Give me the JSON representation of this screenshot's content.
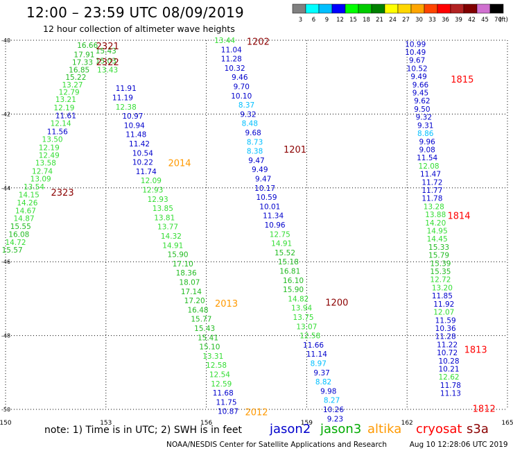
{
  "header": {
    "title": "12:00 – 23:59 UTC 08/09/2019",
    "subtitle": "12 hour collection of altimeter wave heights"
  },
  "note": "note:  1) Time is in UTC; 2) SWH is in feet",
  "footer": {
    "credit": "NOAA/NESDIS Center for Satellite Applications and Research",
    "generated": "Aug 10 12:28:06 UTC 2019"
  },
  "satellites": [
    {
      "name": "jason2",
      "color": "#0000cc"
    },
    {
      "name": "jason3",
      "color": "#00aa00"
    },
    {
      "name": "altika",
      "color": "#ff9900"
    },
    {
      "name": "cryosat",
      "color": "#ff0000"
    },
    {
      "name": "s3a",
      "color": "#8b0000"
    }
  ],
  "legend": {
    "unit": "(ft)",
    "bins": [
      {
        "label": "3",
        "color": "#808080"
      },
      {
        "label": "6",
        "color": "#00ffff"
      },
      {
        "label": "9",
        "color": "#00bfff"
      },
      {
        "label": "12",
        "color": "#0000ff"
      },
      {
        "label": "15",
        "color": "#00ff00"
      },
      {
        "label": "18",
        "color": "#00cc00"
      },
      {
        "label": "21",
        "color": "#008000"
      },
      {
        "label": "24",
        "color": "#ffff00"
      },
      {
        "label": "27",
        "color": "#ffd700"
      },
      {
        "label": "30",
        "color": "#ffa500"
      },
      {
        "label": "33",
        "color": "#ff4500"
      },
      {
        "label": "36",
        "color": "#ff0000"
      },
      {
        "label": "39",
        "color": "#b22222"
      },
      {
        "label": "42",
        "color": "#800000"
      },
      {
        "label": "45",
        "color": "#d070d0"
      },
      {
        "label": "70",
        "color": "#000000"
      }
    ]
  },
  "chart_data": {
    "type": "scatter",
    "title": "12:00 – 23:59 UTC 08/09/2019",
    "subtitle": "12 hour collection of altimeter wave heights",
    "xlim": [
      150,
      165
    ],
    "ylim": [
      -50,
      -40
    ],
    "xticks": [
      150,
      153,
      156,
      159,
      162,
      165
    ],
    "yticks": [
      -40,
      -42,
      -44,
      -46,
      -48,
      -50
    ],
    "grid": true,
    "colors": {
      "c9": "#00bfff",
      "c12": "#0000cc",
      "c15": "#33dd33",
      "c18": "#22bb22",
      "t_s3a": "#8b0000",
      "t_alt": "#ff9900",
      "t_cryo": "#ff0000"
    },
    "tracks": [
      {
        "name": "track-s3a-2321-2323",
        "points": [
          [
            152.45,
            -40.13,
            16.66
          ],
          [
            152.35,
            -40.39,
            17.91
          ],
          [
            152.3,
            -40.59,
            17.33
          ],
          [
            152.2,
            -40.8,
            16.85
          ],
          [
            152.1,
            -41.0,
            15.22
          ],
          [
            152.0,
            -41.2,
            13.27
          ],
          [
            151.9,
            -41.4,
            12.79
          ],
          [
            151.8,
            -41.6,
            13.21
          ],
          [
            151.75,
            -41.82,
            12.19
          ],
          [
            151.8,
            -42.04,
            11.61
          ],
          [
            151.65,
            -42.25,
            12.14
          ],
          [
            151.55,
            -42.47,
            11.56
          ],
          [
            151.4,
            -42.68,
            13.5
          ],
          [
            151.3,
            -42.9,
            12.19
          ],
          [
            151.3,
            -43.11,
            12.49
          ],
          [
            151.2,
            -43.32,
            13.58
          ],
          [
            151.1,
            -43.54,
            12.74
          ],
          [
            151.05,
            -43.75,
            13.09
          ],
          [
            150.85,
            -43.97,
            13.54
          ],
          [
            150.7,
            -44.18,
            14.15
          ],
          [
            150.65,
            -44.4,
            14.26
          ],
          [
            150.6,
            -44.61,
            14.67
          ],
          [
            150.55,
            -44.82,
            14.87
          ],
          [
            150.45,
            -45.04,
            15.55
          ],
          [
            150.4,
            -45.25,
            16.08
          ],
          [
            150.3,
            -45.47,
            14.72
          ],
          [
            150.2,
            -45.68,
            15.57
          ]
        ]
      },
      {
        "name": "track-s3a-2321-2322-upper",
        "points": [
          [
            153.0,
            -40.28,
            15.43
          ],
          [
            153.0,
            -40.55,
            15.03
          ],
          [
            153.05,
            -40.8,
            13.43
          ]
        ]
      },
      {
        "name": "track-altika-2012-2014",
        "points": [
          [
            153.6,
            -41.3,
            11.91
          ],
          [
            153.5,
            -41.55,
            11.19
          ],
          [
            153.6,
            -41.8,
            12.38
          ],
          [
            153.8,
            -42.05,
            10.97
          ],
          [
            153.85,
            -42.3,
            10.94
          ],
          [
            153.9,
            -42.55,
            11.48
          ],
          [
            154.0,
            -42.8,
            11.42
          ],
          [
            154.1,
            -43.05,
            10.54
          ],
          [
            154.1,
            -43.3,
            10.22
          ],
          [
            154.2,
            -43.55,
            11.74
          ],
          [
            154.35,
            -43.8,
            12.09
          ],
          [
            154.4,
            -44.05,
            12.93
          ],
          [
            154.55,
            -44.3,
            12.93
          ],
          [
            154.7,
            -44.55,
            13.85
          ],
          [
            154.75,
            -44.8,
            13.81
          ],
          [
            154.85,
            -45.05,
            13.77
          ],
          [
            154.95,
            -45.3,
            14.32
          ],
          [
            155.0,
            -45.55,
            14.91
          ],
          [
            155.15,
            -45.8,
            15.9
          ],
          [
            155.3,
            -46.05,
            17.1
          ],
          [
            155.4,
            -46.3,
            18.36
          ],
          [
            155.5,
            -46.55,
            18.07
          ],
          [
            155.55,
            -46.8,
            17.14
          ],
          [
            155.65,
            -47.05,
            17.2
          ],
          [
            155.75,
            -47.3,
            16.48
          ],
          [
            155.85,
            -47.55,
            15.77
          ],
          [
            155.95,
            -47.8,
            15.43
          ],
          [
            156.05,
            -48.05,
            15.41
          ],
          [
            156.1,
            -48.3,
            15.1
          ],
          [
            156.2,
            -48.55,
            13.31
          ],
          [
            156.3,
            -48.8,
            12.58
          ],
          [
            156.4,
            -49.05,
            12.54
          ],
          [
            156.45,
            -49.3,
            12.59
          ],
          [
            156.5,
            -49.55,
            11.68
          ],
          [
            156.6,
            -49.8,
            11.75
          ],
          [
            156.65,
            -50.05,
            10.87
          ]
        ]
      },
      {
        "name": "track-s3a-1200-1202",
        "points": [
          [
            156.55,
            -40.0,
            13.44
          ],
          [
            156.75,
            -40.25,
            11.04
          ],
          [
            156.75,
            -40.5,
            11.28
          ],
          [
            156.85,
            -40.75,
            10.32
          ],
          [
            157.0,
            -41.0,
            9.46
          ],
          [
            157.05,
            -41.25,
            9.7
          ],
          [
            157.05,
            -41.5,
            10.1
          ],
          [
            157.2,
            -41.75,
            8.37
          ],
          [
            157.25,
            -42.0,
            9.32
          ],
          [
            157.3,
            -42.25,
            8.48
          ],
          [
            157.4,
            -42.5,
            9.68
          ],
          [
            157.45,
            -42.75,
            8.73
          ],
          [
            157.45,
            -43.0,
            8.38
          ],
          [
            157.5,
            -43.25,
            9.47
          ],
          [
            157.6,
            -43.5,
            9.49
          ],
          [
            157.7,
            -43.75,
            9.47
          ],
          [
            157.75,
            -44.0,
            10.17
          ],
          [
            157.8,
            -44.25,
            10.59
          ],
          [
            157.9,
            -44.5,
            10.01
          ],
          [
            158.0,
            -44.75,
            11.34
          ],
          [
            158.05,
            -45.0,
            10.96
          ],
          [
            158.2,
            -45.25,
            12.75
          ],
          [
            158.25,
            -45.5,
            14.91
          ],
          [
            158.35,
            -45.75,
            15.52
          ],
          [
            158.45,
            -46.0,
            15.18
          ],
          [
            158.5,
            -46.25,
            16.81
          ],
          [
            158.6,
            -46.5,
            16.1
          ],
          [
            158.6,
            -46.75,
            15.9
          ],
          [
            158.75,
            -47.0,
            14.82
          ],
          [
            158.85,
            -47.25,
            13.94
          ],
          [
            158.9,
            -47.5,
            13.75
          ],
          [
            159.0,
            -47.75,
            13.07
          ],
          [
            159.1,
            -48.0,
            12.58
          ],
          [
            159.2,
            -48.25,
            11.66
          ],
          [
            159.3,
            -48.5,
            11.14
          ],
          [
            159.35,
            -48.75,
            8.97
          ],
          [
            159.45,
            -49.0,
            9.37
          ],
          [
            159.5,
            -49.25,
            8.82
          ],
          [
            159.65,
            -49.5,
            9.98
          ],
          [
            159.75,
            -49.75,
            8.27
          ],
          [
            159.8,
            -50.0,
            10.26
          ],
          [
            159.85,
            -50.25,
            9.23
          ]
        ]
      },
      {
        "name": "track-cryosat-1812-1815",
        "points": [
          [
            162.25,
            -40.1,
            10.99
          ],
          [
            162.25,
            -40.32,
            10.49
          ],
          [
            162.3,
            -40.54,
            9.67
          ],
          [
            162.3,
            -40.76,
            10.52
          ],
          [
            162.35,
            -40.98,
            9.49
          ],
          [
            162.4,
            -41.2,
            9.66
          ],
          [
            162.4,
            -41.42,
            9.45
          ],
          [
            162.45,
            -41.64,
            9.62
          ],
          [
            162.45,
            -41.86,
            9.5
          ],
          [
            162.5,
            -42.08,
            9.32
          ],
          [
            162.55,
            -42.3,
            9.31
          ],
          [
            162.55,
            -42.52,
            8.86
          ],
          [
            162.6,
            -42.74,
            9.96
          ],
          [
            162.6,
            -42.96,
            9.08
          ],
          [
            162.6,
            -43.18,
            11.54
          ],
          [
            162.65,
            -43.4,
            12.08
          ],
          [
            162.7,
            -43.62,
            11.47
          ],
          [
            162.75,
            -43.84,
            11.72
          ],
          [
            162.75,
            -44.06,
            11.77
          ],
          [
            162.75,
            -44.28,
            11.78
          ],
          [
            162.8,
            -44.5,
            13.28
          ],
          [
            162.85,
            -44.72,
            13.88
          ],
          [
            162.85,
            -44.94,
            14.2
          ],
          [
            162.9,
            -45.16,
            14.95
          ],
          [
            162.9,
            -45.38,
            14.45
          ],
          [
            162.95,
            -45.6,
            15.33
          ],
          [
            162.95,
            -45.82,
            15.79
          ],
          [
            163.0,
            -46.04,
            15.39
          ],
          [
            163.0,
            -46.26,
            15.35
          ],
          [
            163.0,
            -46.48,
            12.72
          ],
          [
            163.05,
            -46.7,
            13.2
          ],
          [
            163.05,
            -46.92,
            11.85
          ],
          [
            163.1,
            -47.14,
            11.92
          ],
          [
            163.1,
            -47.36,
            12.07
          ],
          [
            163.15,
            -47.58,
            11.59
          ],
          [
            163.15,
            -47.8,
            10.36
          ],
          [
            163.15,
            -48.02,
            11.28
          ],
          [
            163.2,
            -48.24,
            11.22
          ],
          [
            163.2,
            -48.46,
            10.72
          ],
          [
            163.25,
            -48.68,
            10.28
          ],
          [
            163.25,
            -48.9,
            10.21
          ],
          [
            163.25,
            -49.12,
            12.62
          ],
          [
            163.3,
            -49.34,
            11.78
          ],
          [
            163.3,
            -49.56,
            11.13
          ]
        ]
      }
    ],
    "time_labels": [
      {
        "text": "2321",
        "x": 153.05,
        "y": -40.15,
        "sat": "s3a"
      },
      {
        "text": "2322",
        "x": 153.05,
        "y": -40.58,
        "sat": "s3a"
      },
      {
        "text": "2323",
        "x": 151.7,
        "y": -44.12,
        "sat": "s3a"
      },
      {
        "text": "1202",
        "x": 157.55,
        "y": -40.03,
        "sat": "s3a"
      },
      {
        "text": "1201",
        "x": 158.65,
        "y": -42.95,
        "sat": "s3a"
      },
      {
        "text": "1200",
        "x": 159.9,
        "y": -47.1,
        "sat": "s3a"
      },
      {
        "text": "2014",
        "x": 155.2,
        "y": -43.32,
        "sat": "altika"
      },
      {
        "text": "2013",
        "x": 156.6,
        "y": -47.12,
        "sat": "altika"
      },
      {
        "text": "2012",
        "x": 157.5,
        "y": -50.07,
        "sat": "altika"
      },
      {
        "text": "1815",
        "x": 163.65,
        "y": -41.05,
        "sat": "cryosat"
      },
      {
        "text": "1814",
        "x": 163.55,
        "y": -44.75,
        "sat": "cryosat"
      },
      {
        "text": "1813",
        "x": 164.05,
        "y": -48.37,
        "sat": "cryosat"
      },
      {
        "text": "1812",
        "x": 164.3,
        "y": -49.97,
        "sat": "cryosat"
      }
    ]
  }
}
